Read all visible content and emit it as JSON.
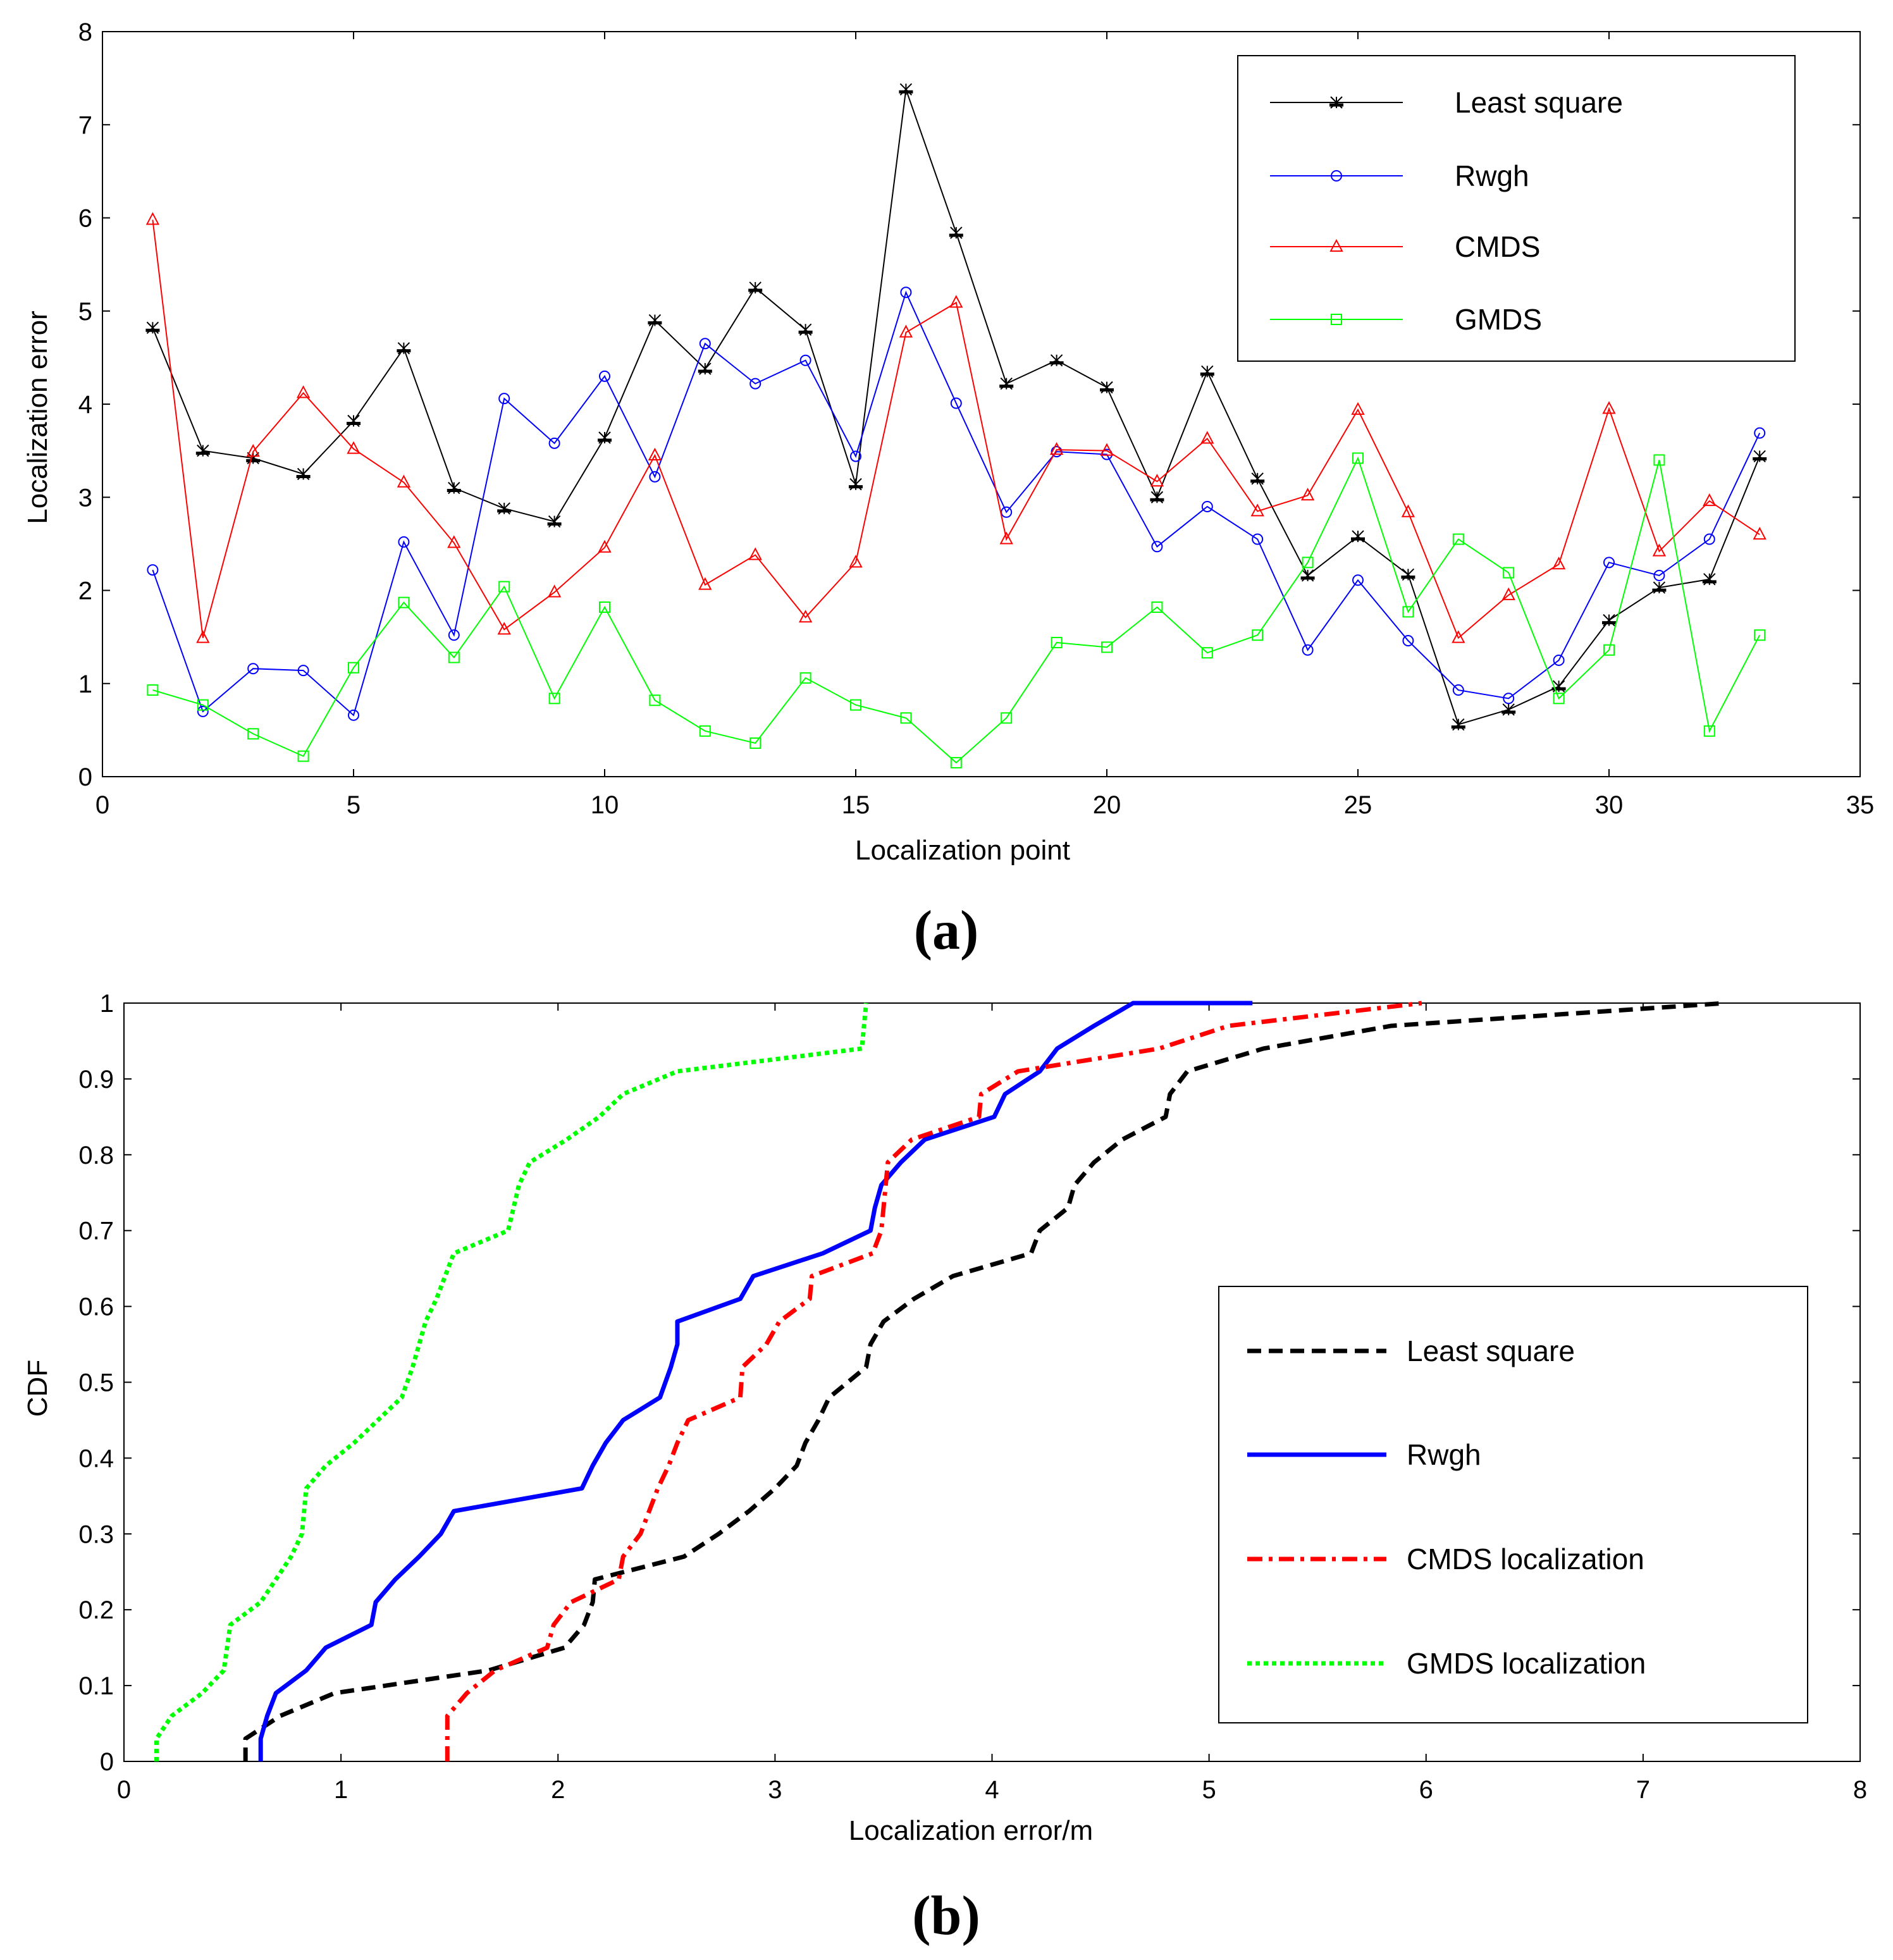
{
  "chart_data": [
    {
      "type": "line",
      "panel_label": "(a)",
      "xlabel": "Localization point",
      "ylabel": "Localization error",
      "xlim": [
        0,
        35
      ],
      "ylim": [
        0,
        8
      ],
      "xticks": [
        "0",
        "5",
        "10",
        "15",
        "20",
        "25",
        "30",
        "35"
      ],
      "yticks": [
        "0",
        "1",
        "2",
        "3",
        "4",
        "5",
        "6",
        "7",
        "8"
      ],
      "grid": false,
      "legend_position": "top-right",
      "x": [
        1,
        2,
        3,
        4,
        5,
        6,
        7,
        8,
        9,
        10,
        11,
        12,
        13,
        14,
        15,
        16,
        17,
        18,
        19,
        20,
        21,
        22,
        23,
        24,
        25,
        26,
        27,
        28,
        29,
        30,
        31,
        32,
        33
      ],
      "series": [
        {
          "name": "Least square",
          "color": "#000000",
          "marker": "star",
          "values": [
            4.82,
            3.5,
            3.42,
            3.25,
            3.82,
            4.6,
            3.1,
            2.88,
            2.74,
            3.64,
            4.9,
            4.38,
            5.25,
            4.8,
            3.14,
            7.38,
            5.84,
            4.22,
            4.47,
            4.18,
            3.0,
            4.35,
            3.2,
            2.16,
            2.58,
            2.17,
            0.56,
            0.72,
            0.97,
            1.68,
            2.03,
            2.12,
            3.44
          ]
        },
        {
          "name": "Rwgh",
          "color": "#0000ff",
          "marker": "circle",
          "values": [
            2.22,
            0.7,
            1.16,
            1.14,
            0.66,
            2.52,
            1.52,
            4.06,
            3.58,
            4.3,
            3.22,
            4.65,
            4.22,
            4.47,
            3.44,
            5.2,
            4.01,
            2.84,
            3.49,
            3.46,
            2.47,
            2.9,
            2.55,
            1.36,
            2.11,
            1.46,
            0.93,
            0.84,
            1.25,
            2.3,
            2.16,
            2.55,
            3.69
          ]
        },
        {
          "name": "CMDS",
          "color": "#ff0000",
          "marker": "triangle",
          "values": [
            5.98,
            1.49,
            3.49,
            4.12,
            3.52,
            3.16,
            2.51,
            1.58,
            1.98,
            2.46,
            3.45,
            2.06,
            2.38,
            1.71,
            2.3,
            4.77,
            5.09,
            2.55,
            3.51,
            3.5,
            3.17,
            3.63,
            2.85,
            3.02,
            3.94,
            2.84,
            1.49,
            1.95,
            2.28,
            3.95,
            2.42,
            2.96,
            2.6
          ]
        },
        {
          "name": "GMDS",
          "color": "#00ff00",
          "marker": "square",
          "values": [
            0.93,
            0.77,
            0.46,
            0.22,
            1.17,
            1.87,
            1.28,
            2.04,
            0.84,
            1.82,
            0.82,
            0.49,
            0.36,
            1.06,
            0.77,
            0.63,
            0.15,
            0.63,
            1.44,
            1.39,
            1.82,
            1.33,
            1.52,
            2.3,
            3.42,
            1.77,
            2.55,
            2.19,
            0.84,
            1.36,
            3.4,
            0.49,
            1.52
          ]
        }
      ]
    },
    {
      "type": "line",
      "subtype": "cdf",
      "panel_label": "(b)",
      "xlabel": "Localization error/m",
      "ylabel": "CDF",
      "xlim": [
        0,
        8
      ],
      "ylim": [
        0,
        1
      ],
      "xticks": [
        "0",
        "1",
        "2",
        "3",
        "4",
        "5",
        "6",
        "7",
        "8"
      ],
      "yticks": [
        "0",
        "0.1",
        "0.2",
        "0.3",
        "0.4",
        "0.5",
        "0.6",
        "0.7",
        "0.8",
        "0.9",
        "1"
      ],
      "grid": false,
      "legend_position": "bottom-right",
      "series": [
        {
          "name": "Least square",
          "color": "#000000",
          "style": "dashed",
          "x": [
            0.56,
            0.56,
            0.72,
            0.97,
            1.68,
            2.03,
            2.12,
            2.16,
            2.17,
            2.58,
            2.74,
            2.88,
            3.0,
            3.1,
            3.14,
            3.2,
            3.25,
            3.42,
            3.44,
            3.5,
            3.64,
            3.82,
            4.18,
            4.22,
            4.35,
            4.38,
            4.47,
            4.6,
            4.8,
            4.82,
            4.9,
            5.25,
            5.84,
            7.38
          ],
          "y": [
            0,
            0.03,
            0.06,
            0.09,
            0.12,
            0.15,
            0.18,
            0.21,
            0.24,
            0.27,
            0.3,
            0.33,
            0.36,
            0.39,
            0.42,
            0.45,
            0.48,
            0.52,
            0.55,
            0.58,
            0.61,
            0.64,
            0.67,
            0.7,
            0.73,
            0.76,
            0.79,
            0.82,
            0.85,
            0.88,
            0.91,
            0.94,
            0.97,
            1.0
          ]
        },
        {
          "name": "Rwgh",
          "color": "#0000ff",
          "style": "solid",
          "x": [
            0.63,
            0.63,
            0.66,
            0.7,
            0.84,
            0.93,
            1.14,
            1.16,
            1.25,
            1.36,
            1.46,
            1.52,
            2.11,
            2.16,
            2.22,
            2.3,
            2.47,
            2.52,
            2.55,
            2.55,
            2.84,
            2.9,
            3.22,
            3.44,
            3.46,
            3.49,
            3.58,
            3.69,
            4.01,
            4.06,
            4.22,
            4.3,
            4.47,
            4.65,
            5.2
          ],
          "y": [
            0,
            0.03,
            0.06,
            0.09,
            0.12,
            0.15,
            0.18,
            0.21,
            0.24,
            0.27,
            0.3,
            0.33,
            0.36,
            0.39,
            0.42,
            0.45,
            0.48,
            0.52,
            0.55,
            0.58,
            0.61,
            0.64,
            0.67,
            0.7,
            0.73,
            0.76,
            0.79,
            0.82,
            0.85,
            0.88,
            0.91,
            0.94,
            0.97,
            1.0,
            1.0
          ]
        },
        {
          "name": "CMDS localization",
          "color": "#ff0000",
          "style": "dashdot",
          "x": [
            1.49,
            1.49,
            1.58,
            1.71,
            1.95,
            1.98,
            2.06,
            2.28,
            2.3,
            2.38,
            2.42,
            2.46,
            2.51,
            2.55,
            2.6,
            2.84,
            2.85,
            2.96,
            3.02,
            3.16,
            3.17,
            3.45,
            3.49,
            3.5,
            3.51,
            3.52,
            3.63,
            3.94,
            3.95,
            4.12,
            4.77,
            5.09,
            5.98
          ],
          "y": [
            0,
            0.06,
            0.09,
            0.12,
            0.15,
            0.18,
            0.21,
            0.24,
            0.27,
            0.3,
            0.33,
            0.36,
            0.39,
            0.42,
            0.45,
            0.48,
            0.52,
            0.55,
            0.58,
            0.61,
            0.64,
            0.67,
            0.7,
            0.73,
            0.76,
            0.79,
            0.82,
            0.85,
            0.88,
            0.91,
            0.94,
            0.97,
            1.0
          ]
        },
        {
          "name": "GMDS localization",
          "color": "#00ff00",
          "style": "dotted",
          "x": [
            0.15,
            0.15,
            0.22,
            0.36,
            0.46,
            0.49,
            0.63,
            0.77,
            0.82,
            0.84,
            0.93,
            1.06,
            1.17,
            1.28,
            1.33,
            1.36,
            1.39,
            1.44,
            1.52,
            1.77,
            1.82,
            1.87,
            2.04,
            2.19,
            2.3,
            2.55,
            3.4,
            3.42
          ],
          "y": [
            0,
            0.03,
            0.06,
            0.09,
            0.12,
            0.18,
            0.21,
            0.27,
            0.3,
            0.36,
            0.39,
            0.42,
            0.45,
            0.48,
            0.52,
            0.55,
            0.58,
            0.61,
            0.67,
            0.7,
            0.76,
            0.79,
            0.82,
            0.85,
            0.88,
            0.91,
            0.94,
            1.0
          ]
        }
      ]
    }
  ]
}
